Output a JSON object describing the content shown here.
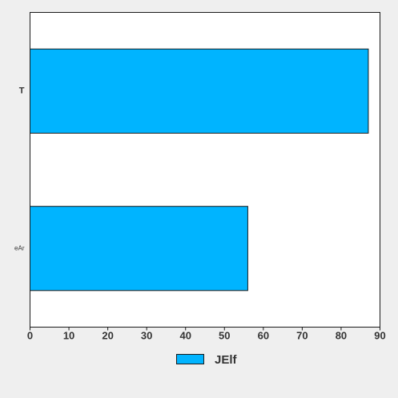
{
  "chart_data": {
    "type": "bar",
    "orientation": "horizontal",
    "categories": [
      "T",
      "eAr"
    ],
    "series": [
      {
        "name": "JElf",
        "values": [
          87,
          56
        ]
      }
    ],
    "xlim": [
      0,
      90
    ],
    "xticks": [
      0,
      10,
      20,
      30,
      40,
      50,
      60,
      70,
      80,
      90
    ],
    "grid": false,
    "legend_position": "bottom-center",
    "colors": {
      "bar": "#00b4ff",
      "bar_edge": "#1a1a1a",
      "plot_background": "#ffffff",
      "page_background": "#efefef"
    }
  }
}
